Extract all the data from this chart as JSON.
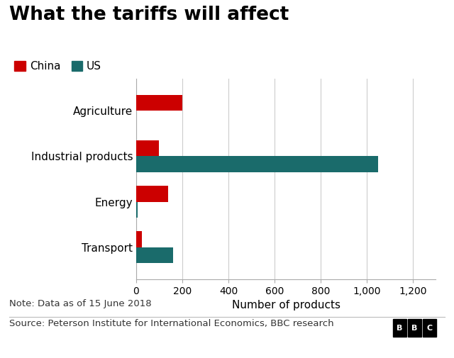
{
  "title": "What the tariffs will affect",
  "categories": [
    "Agriculture",
    "Industrial products",
    "Energy",
    "Transport"
  ],
  "china_values": [
    200,
    100,
    140,
    25
  ],
  "us_values": [
    0,
    1050,
    5,
    160
  ],
  "china_color": "#cc0000",
  "us_color": "#1a6b6b",
  "xlabel": "Number of products",
  "xlim": [
    0,
    1300
  ],
  "xticks": [
    0,
    200,
    400,
    600,
    800,
    1000,
    1200
  ],
  "xtick_labels": [
    "0",
    "200",
    "400",
    "600",
    "800",
    "1,000",
    "1,200"
  ],
  "note": "Note: Data as of 15 June 2018",
  "source": "Source: Peterson Institute for International Economics, BBC research",
  "background_color": "#ffffff",
  "bar_height": 0.35,
  "title_fontsize": 19,
  "legend_fontsize": 11,
  "axis_fontsize": 10,
  "note_fontsize": 9.5,
  "source_fontsize": 9.5
}
